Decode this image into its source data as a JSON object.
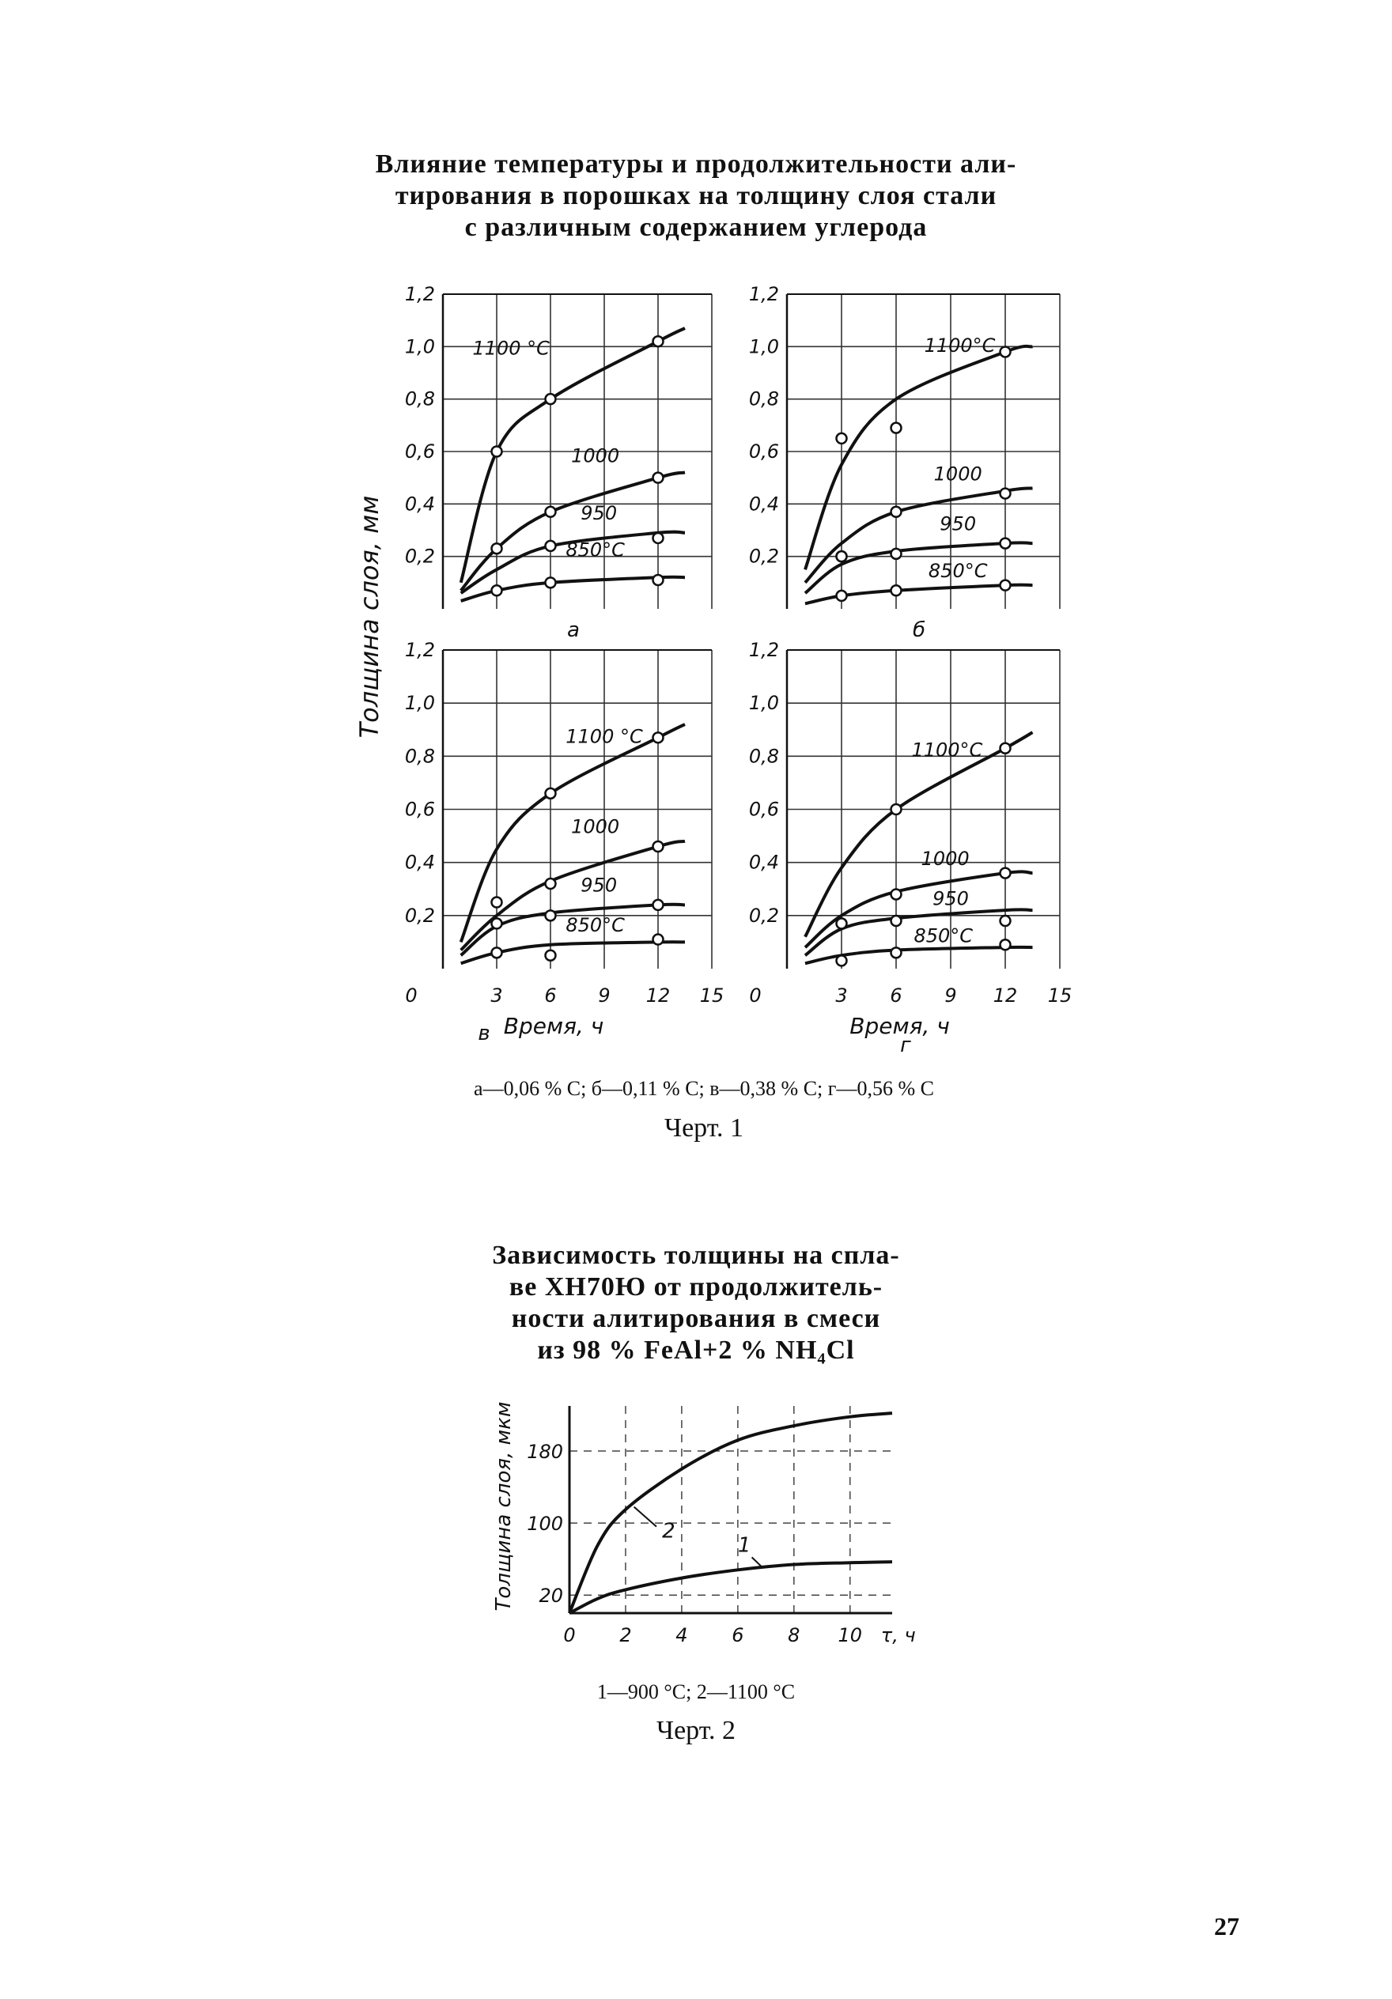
{
  "chart1": {
    "title_lines": [
      "Влияние температуры и продолжительности али-",
      "тирования в порошках на толщину слоя стали",
      "с различным содержанием углерода"
    ],
    "ylabel": "Толщина слоя, мм",
    "xlabel": "Время, ч",
    "caption": "а—0,06 % С;  б—0,11 % С;   в—0,38 % С;   г—0,56 % С",
    "figure_label": "Черт. 1"
  },
  "chart2": {
    "title_lines": [
      "Зависимость толщины на спла-",
      "ве ХН70Ю от продолжитель-",
      "ности алитирования в смеси",
      "из 98 % FeAl+2 % NH₄Cl"
    ],
    "caption": "1—900 °С;  2—1100 °С",
    "figure_label": "Черт. 2"
  },
  "page_number": "27",
  "chart_data": [
    {
      "type": "line",
      "panel": "а",
      "xlabel": "",
      "ylabel": "Толщина слоя, мм",
      "xlim": [
        0,
        15
      ],
      "ylim": [
        0,
        1.2
      ],
      "x_ticks": [
        "0",
        "3",
        "6",
        "9",
        "12",
        "15"
      ],
      "y_ticks": [
        "0,2",
        "0,4",
        "0,6",
        "0,8",
        "1,0",
        "1,2"
      ],
      "series": [
        {
          "name": "1100 °С",
          "x": [
            1,
            3,
            6,
            12,
            13.5
          ],
          "y": [
            0.1,
            0.6,
            0.8,
            1.02,
            1.07
          ],
          "markers": [
            [
              3,
              0.6
            ],
            [
              6,
              0.8
            ],
            [
              12,
              1.02
            ]
          ]
        },
        {
          "name": "1000",
          "x": [
            1,
            3,
            6,
            12,
            13.5
          ],
          "y": [
            0.07,
            0.23,
            0.37,
            0.5,
            0.52
          ],
          "markers": [
            [
              3,
              0.23
            ],
            [
              6,
              0.37
            ],
            [
              12,
              0.5
            ]
          ]
        },
        {
          "name": "950",
          "x": [
            1,
            3,
            6,
            12,
            13.5
          ],
          "y": [
            0.06,
            0.15,
            0.24,
            0.29,
            0.29
          ],
          "markers": [
            [
              6,
              0.24
            ],
            [
              12,
              0.27
            ]
          ]
        },
        {
          "name": "850°С",
          "x": [
            1,
            3,
            6,
            12,
            13.5
          ],
          "y": [
            0.03,
            0.07,
            0.1,
            0.12,
            0.12
          ],
          "markers": [
            [
              3,
              0.07
            ],
            [
              6,
              0.1
            ],
            [
              12,
              0.11
            ]
          ]
        }
      ]
    },
    {
      "type": "line",
      "panel": "б",
      "xlabel": "",
      "ylabel": "Толщина слоя, мм",
      "xlim": [
        0,
        15
      ],
      "ylim": [
        0,
        1.2
      ],
      "x_ticks": [
        "0",
        "3",
        "6",
        "9",
        "12",
        "15"
      ],
      "y_ticks": [
        "0,2",
        "0,4",
        "0,6",
        "0,8",
        "1,0",
        "1,2"
      ],
      "series": [
        {
          "name": "1100°С",
          "x": [
            1,
            3,
            6,
            12,
            13.5
          ],
          "y": [
            0.15,
            0.55,
            0.8,
            0.98,
            1.0
          ],
          "markers": [
            [
              3,
              0.65
            ],
            [
              6,
              0.69
            ],
            [
              12,
              0.98
            ]
          ]
        },
        {
          "name": "1000",
          "x": [
            1,
            3,
            6,
            12,
            13.5
          ],
          "y": [
            0.1,
            0.25,
            0.37,
            0.45,
            0.46
          ],
          "markers": [
            [
              3,
              0.2
            ],
            [
              6,
              0.37
            ],
            [
              12,
              0.44
            ]
          ]
        },
        {
          "name": "950",
          "x": [
            1,
            3,
            6,
            12,
            13.5
          ],
          "y": [
            0.06,
            0.17,
            0.22,
            0.25,
            0.25
          ],
          "markers": [
            [
              3,
              0.2
            ],
            [
              6,
              0.21
            ],
            [
              12,
              0.25
            ]
          ]
        },
        {
          "name": "850°С",
          "x": [
            1,
            3,
            6,
            12,
            13.5
          ],
          "y": [
            0.02,
            0.05,
            0.07,
            0.09,
            0.09
          ],
          "markers": [
            [
              3,
              0.05
            ],
            [
              6,
              0.07
            ],
            [
              12,
              0.09
            ]
          ]
        }
      ]
    },
    {
      "type": "line",
      "panel": "в",
      "xlabel": "Время, ч",
      "ylabel": "Толщина слоя, мм",
      "xlim": [
        0,
        15
      ],
      "ylim": [
        0,
        1.2
      ],
      "x_ticks": [
        "0",
        "3",
        "6",
        "9",
        "12",
        "15"
      ],
      "y_ticks": [
        "0,2",
        "0,4",
        "0,6",
        "0,8",
        "1,0",
        "1,2"
      ],
      "series": [
        {
          "name": "1100 °С",
          "x": [
            1,
            3,
            6,
            12,
            13.5
          ],
          "y": [
            0.1,
            0.45,
            0.66,
            0.87,
            0.92
          ],
          "markers": [
            [
              6,
              0.66
            ],
            [
              12,
              0.87
            ]
          ]
        },
        {
          "name": "1000",
          "x": [
            1,
            3,
            6,
            12,
            13.5
          ],
          "y": [
            0.07,
            0.2,
            0.33,
            0.46,
            0.48
          ],
          "markers": [
            [
              3,
              0.25
            ],
            [
              6,
              0.32
            ],
            [
              12,
              0.46
            ]
          ]
        },
        {
          "name": "950",
          "x": [
            1,
            3,
            6,
            12,
            13.5
          ],
          "y": [
            0.05,
            0.16,
            0.21,
            0.24,
            0.24
          ],
          "markers": [
            [
              3,
              0.17
            ],
            [
              6,
              0.2
            ],
            [
              12,
              0.24
            ]
          ]
        },
        {
          "name": "850°С",
          "x": [
            1,
            3,
            6,
            12,
            13.5
          ],
          "y": [
            0.02,
            0.06,
            0.09,
            0.1,
            0.1
          ],
          "markers": [
            [
              3,
              0.06
            ],
            [
              6,
              0.05
            ],
            [
              12,
              0.11
            ]
          ]
        }
      ]
    },
    {
      "type": "line",
      "panel": "г",
      "xlabel": "Время, ч",
      "ylabel": "Толщина слоя, мм",
      "xlim": [
        0,
        15
      ],
      "ylim": [
        0,
        1.2
      ],
      "x_ticks": [
        "0",
        "3",
        "6",
        "9",
        "12",
        "15"
      ],
      "y_ticks": [
        "0,2",
        "0,4",
        "0,6",
        "0,8",
        "1,0",
        "1,2"
      ],
      "series": [
        {
          "name": "1100°С",
          "x": [
            1,
            3,
            6,
            12,
            13.5
          ],
          "y": [
            0.12,
            0.38,
            0.6,
            0.83,
            0.89
          ],
          "markers": [
            [
              6,
              0.6
            ],
            [
              12,
              0.83
            ]
          ]
        },
        {
          "name": "1000",
          "x": [
            1,
            3,
            6,
            12,
            13.5
          ],
          "y": [
            0.08,
            0.2,
            0.29,
            0.36,
            0.36
          ],
          "markers": [
            [
              6,
              0.28
            ],
            [
              12,
              0.36
            ]
          ]
        },
        {
          "name": "950",
          "x": [
            1,
            3,
            6,
            12,
            13.5
          ],
          "y": [
            0.05,
            0.15,
            0.19,
            0.22,
            0.22
          ],
          "markers": [
            [
              3,
              0.17
            ],
            [
              6,
              0.18
            ],
            [
              12,
              0.18
            ]
          ]
        },
        {
          "name": "850°С",
          "x": [
            1,
            3,
            6,
            12,
            13.5
          ],
          "y": [
            0.02,
            0.05,
            0.07,
            0.08,
            0.08
          ],
          "markers": [
            [
              3,
              0.03
            ],
            [
              6,
              0.06
            ],
            [
              12,
              0.09
            ]
          ]
        }
      ]
    },
    {
      "type": "line",
      "xlabel": "τ, ч",
      "ylabel": "Толщина слоя, мкм",
      "xlim": [
        0,
        11.5
      ],
      "ylim": [
        0,
        230
      ],
      "x_ticks": [
        "0",
        "2",
        "4",
        "6",
        "8",
        "10"
      ],
      "y_ticks": [
        "20",
        "100",
        "180"
      ],
      "series": [
        {
          "name": "2",
          "x": [
            0,
            1,
            2,
            4,
            6,
            8,
            10,
            11.5
          ],
          "y": [
            0,
            75,
            115,
            160,
            192,
            208,
            218,
            222
          ]
        },
        {
          "name": "1",
          "x": [
            0,
            1,
            2,
            4,
            6,
            8,
            10,
            11.5
          ],
          "y": [
            0,
            16,
            26,
            39,
            48,
            54,
            56,
            57
          ]
        }
      ]
    }
  ]
}
